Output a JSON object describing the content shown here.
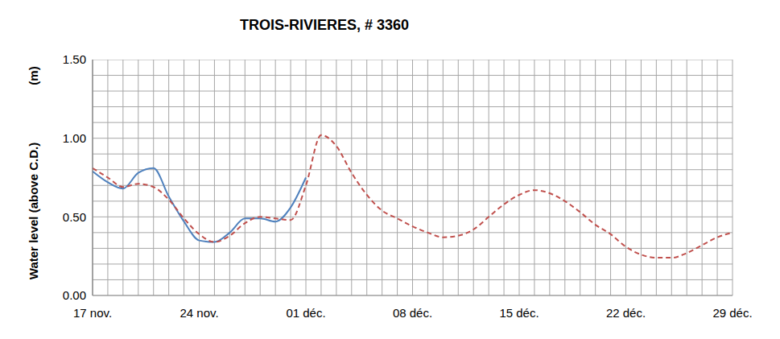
{
  "chart_data": {
    "type": "line",
    "title": "TROIS-RIVIERES, # 3360",
    "y_label": "Water level (above C.D.)",
    "y_unit": "(m)",
    "categories": [
      "17 nov.",
      null,
      null,
      null,
      null,
      null,
      null,
      "24 nov.",
      null,
      null,
      null,
      null,
      null,
      null,
      "01 déc.",
      null,
      null,
      null,
      null,
      null,
      null,
      "08 déc.",
      null,
      null,
      null,
      null,
      null,
      null,
      "15 déc.",
      null,
      null,
      null,
      null,
      null,
      null,
      "22 déc.",
      null,
      null,
      null,
      null,
      null,
      null,
      "29 déc."
    ],
    "series": [
      {
        "color": "#4f81bd",
        "line_style": "solid",
        "values": [
          0.79,
          0.72,
          0.68,
          0.78,
          0.81,
          0.63,
          0.47,
          0.35,
          0.34,
          0.4,
          0.49,
          0.49,
          0.47,
          0.56,
          0.75,
          null,
          null,
          null,
          null,
          null,
          null,
          null,
          null,
          null,
          null,
          null,
          null,
          null,
          null,
          null,
          null,
          null,
          null,
          null,
          null,
          null,
          null,
          null,
          null,
          null,
          null,
          null,
          null
        ]
      },
      {
        "color": "#c0504d",
        "line_style": "dashed",
        "values": [
          0.81,
          0.75,
          0.69,
          0.71,
          0.69,
          0.61,
          0.49,
          0.39,
          0.34,
          0.38,
          0.46,
          0.5,
          0.49,
          0.48,
          0.7,
          1.02,
          0.95,
          0.78,
          0.64,
          0.54,
          0.49,
          0.44,
          0.4,
          0.37,
          0.38,
          0.42,
          0.5,
          0.58,
          0.64,
          0.67,
          0.65,
          0.6,
          0.53,
          0.45,
          0.39,
          0.31,
          0.26,
          0.24,
          0.24,
          0.27,
          0.32,
          0.37,
          0.4
        ]
      }
    ],
    "ylim": [
      0,
      1.5
    ],
    "yticks": [
      {
        "value": 0,
        "label": "0.00"
      },
      {
        "value": 0.5,
        "label": "0.50"
      },
      {
        "value": 1,
        "label": "1.00"
      },
      {
        "value": 1.5,
        "label": "1.50"
      }
    ],
    "grid": true
  }
}
